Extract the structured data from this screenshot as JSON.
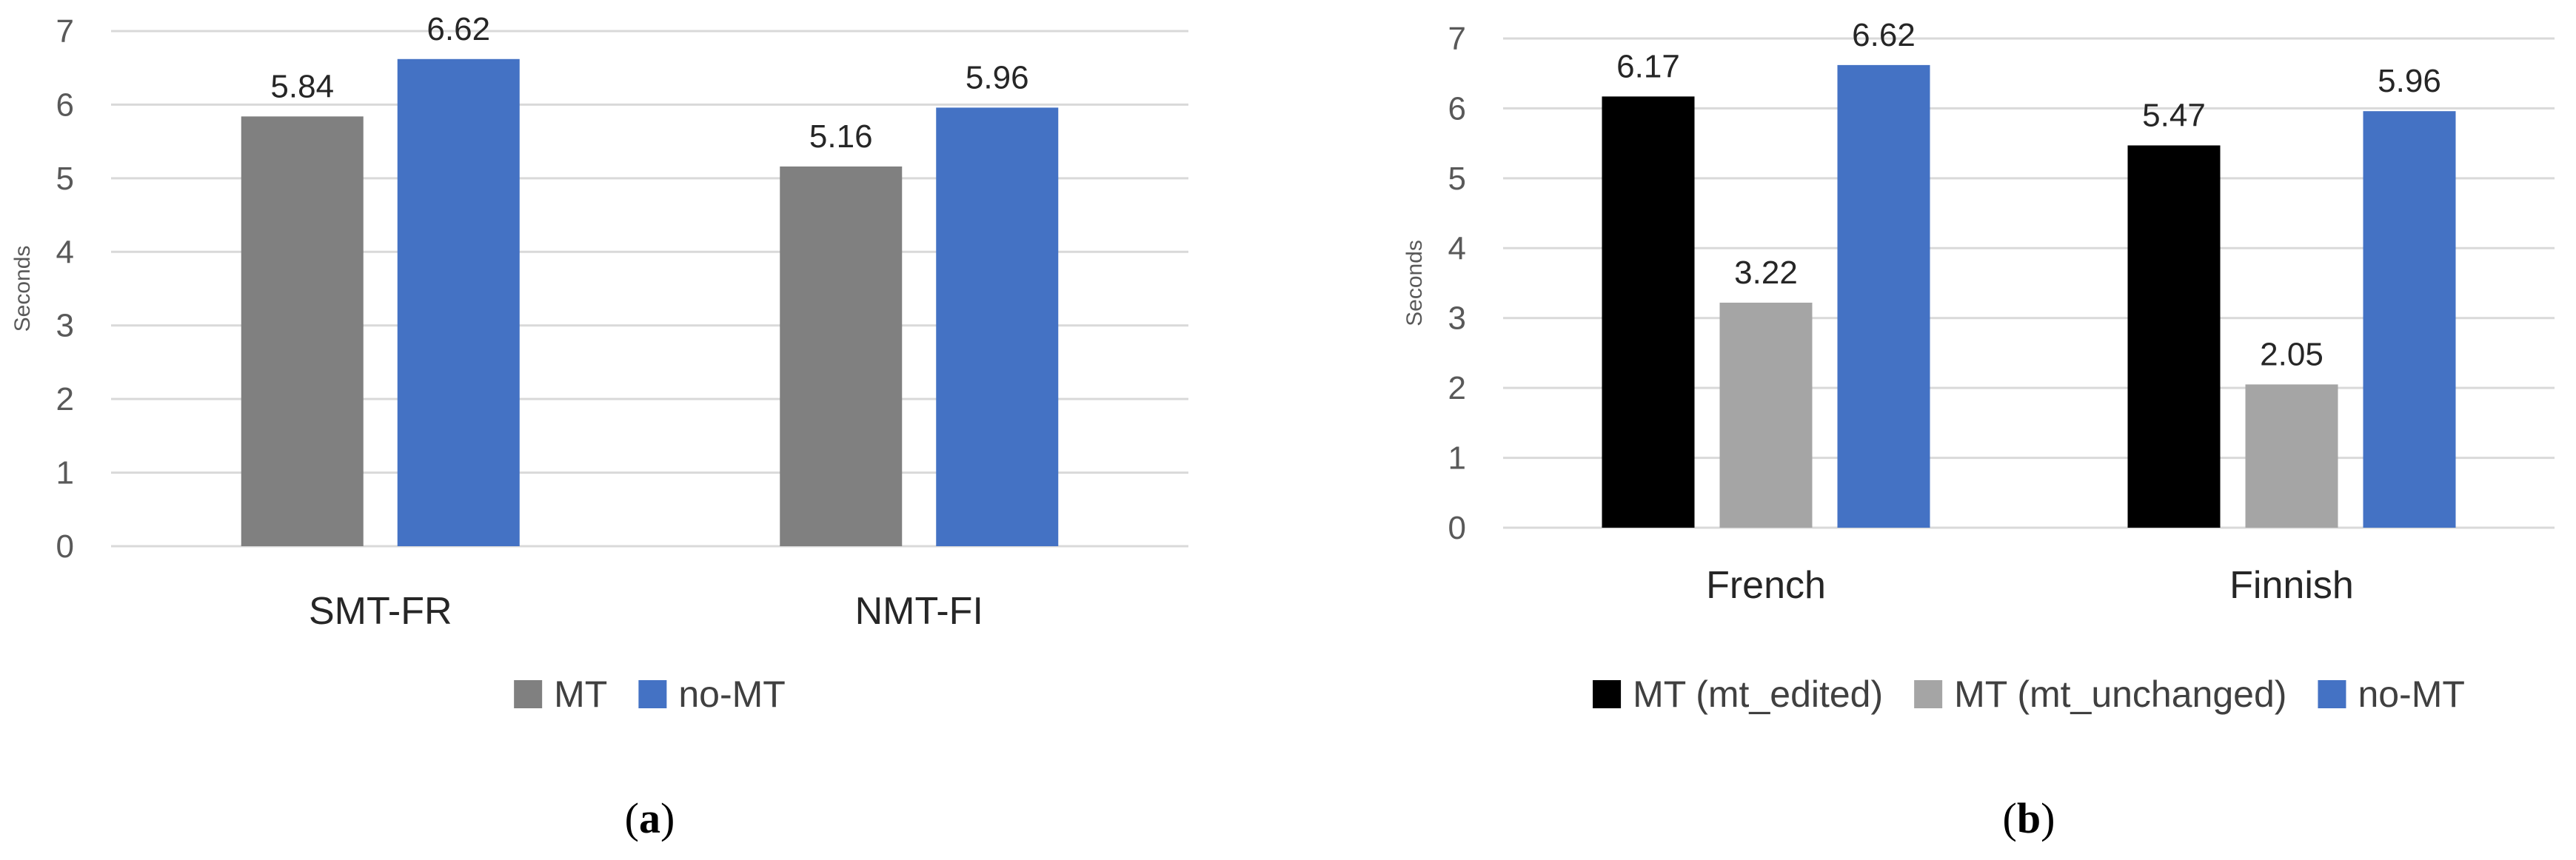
{
  "chart_data": [
    {
      "type": "bar",
      "panel_label": "a",
      "ylabel": "Seconds",
      "ylim": [
        0,
        7
      ],
      "yticks": [
        0,
        1,
        2,
        3,
        4,
        5,
        6,
        7
      ],
      "grid": true,
      "legend_position": "bottom",
      "categories": [
        "SMT-FR",
        "NMT-FI"
      ],
      "series": [
        {
          "name": "MT",
          "color": "#808080",
          "values": [
            5.84,
            5.16
          ],
          "labels": [
            "5.84",
            "5.16"
          ]
        },
        {
          "name": "no-MT",
          "color": "#4472C4",
          "values": [
            6.62,
            5.96
          ],
          "labels": [
            "6.62",
            "5.96"
          ]
        }
      ]
    },
    {
      "type": "bar",
      "panel_label": "b",
      "ylabel": "Seconds",
      "ylim": [
        0,
        7
      ],
      "yticks": [
        0,
        1,
        2,
        3,
        4,
        5,
        6,
        7
      ],
      "grid": true,
      "legend_position": "bottom",
      "categories": [
        "French",
        "Finnish"
      ],
      "series": [
        {
          "name": "MT (mt_edited)",
          "color": "#000000",
          "values": [
            6.17,
            5.47
          ],
          "labels": [
            "6.17",
            "5.47"
          ]
        },
        {
          "name": "MT (mt_unchanged)",
          "color": "#A5A5A5",
          "values": [
            3.22,
            2.05
          ],
          "labels": [
            "3.22",
            "2.05"
          ]
        },
        {
          "name": "no-MT",
          "color": "#4472C4",
          "values": [
            6.62,
            5.96
          ],
          "labels": [
            "6.62",
            "5.96"
          ]
        }
      ]
    }
  ]
}
